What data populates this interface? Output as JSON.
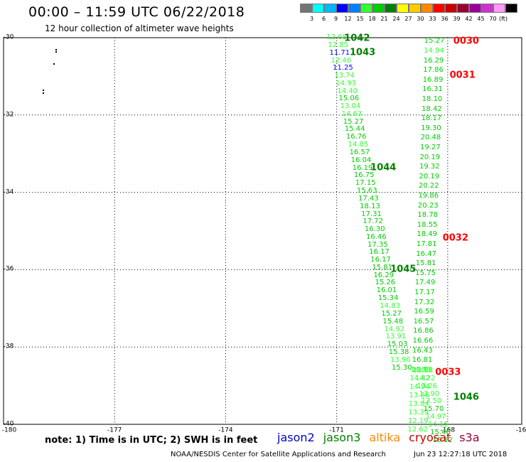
{
  "header": {
    "title": "00:00  –  11:59  UTC  06/22/2018",
    "subtitle": "12 hour collection of altimeter wave heights"
  },
  "legend": {
    "colors": [
      "#757575",
      "#00ffff",
      "#00b7ff",
      "#0000ff",
      "#007fff",
      "#33ff33",
      "#00cc00",
      "#008000",
      "#ffff00",
      "#ffcc00",
      "#ff8800",
      "#ff0000",
      "#cc0000",
      "#990033",
      "#990099",
      "#cc33cc",
      "#ff99ff",
      "#000000"
    ],
    "ticks": [
      "3",
      "6",
      "9",
      "12",
      "15",
      "18",
      "21",
      "24",
      "27",
      "30",
      "33",
      "36",
      "39",
      "42",
      "45",
      "70"
    ],
    "unit": "(ft)"
  },
  "axes": {
    "lon_labels": [
      "-180",
      "-177",
      "-174",
      "-171",
      "-168",
      "-16"
    ],
    "lat_labels": [
      "-30",
      "-32",
      "-34",
      "-36",
      "-38",
      "-40"
    ]
  },
  "notes": {
    "text": "note:  1) Time is in UTC;  2) SWH is in feet"
  },
  "satellites": [
    {
      "name": "jason2",
      "color": "#0000cc"
    },
    {
      "name": "jason3",
      "color": "#008000"
    },
    {
      "name": "altika",
      "color": "#ff8800"
    },
    {
      "name": "cryosat",
      "color": "#cc0000"
    },
    {
      "name": "s3a",
      "color": "#990033"
    }
  ],
  "footer": {
    "credit": "NOAA/NESDIS Center for Satellite Applications and Research",
    "timestamp": "Jun 23 12:27:18 UTC 2018"
  },
  "chart_data": {
    "type": "scatter",
    "xlim": [
      -180,
      -166
    ],
    "ylim": [
      -40,
      -30
    ],
    "grid": true,
    "track_a": {
      "heights": [
        {
          "v": "12.68",
          "lon": -171.0,
          "lat": -30.0,
          "c": "#33ff33"
        },
        {
          "v": "12.85",
          "lon": -170.96,
          "lat": -30.2,
          "c": "#33ff33"
        },
        {
          "v": "11.71",
          "lon": -170.92,
          "lat": -30.4,
          "c": "#0000ff"
        },
        {
          "v": "12.46",
          "lon": -170.88,
          "lat": -30.6,
          "c": "#33ff33"
        },
        {
          "v": "11.25",
          "lon": -170.83,
          "lat": -30.79,
          "c": "#0000ff"
        },
        {
          "v": "13.74",
          "lon": -170.79,
          "lat": -30.99,
          "c": "#33ff33"
        },
        {
          "v": "14.93",
          "lon": -170.75,
          "lat": -31.19,
          "c": "#33ff33"
        },
        {
          "v": "14.40",
          "lon": -170.71,
          "lat": -31.39,
          "c": "#33ff33"
        },
        {
          "v": "15.06",
          "lon": -170.67,
          "lat": -31.59,
          "c": "#00cc00"
        },
        {
          "v": "13.04",
          "lon": -170.63,
          "lat": -31.79,
          "c": "#33ff33"
        },
        {
          "v": "14.63",
          "lon": -170.59,
          "lat": -31.99,
          "c": "#33ff33"
        },
        {
          "v": "15.27",
          "lon": -170.55,
          "lat": -32.18,
          "c": "#00cc00"
        },
        {
          "v": "15.44",
          "lon": -170.51,
          "lat": -32.38,
          "c": "#00cc00"
        },
        {
          "v": "16.76",
          "lon": -170.47,
          "lat": -32.58,
          "c": "#00cc00"
        },
        {
          "v": "14.85",
          "lon": -170.42,
          "lat": -32.78,
          "c": "#33ff33"
        },
        {
          "v": "16.57",
          "lon": -170.38,
          "lat": -32.98,
          "c": "#00cc00"
        },
        {
          "v": "16.04",
          "lon": -170.34,
          "lat": -33.18,
          "c": "#00cc00"
        },
        {
          "v": "16.19",
          "lon": -170.3,
          "lat": -33.38,
          "c": "#00cc00"
        },
        {
          "v": "16.75",
          "lon": -170.26,
          "lat": -33.57,
          "c": "#00cc00"
        },
        {
          "v": "17.15",
          "lon": -170.22,
          "lat": -33.77,
          "c": "#00cc00"
        },
        {
          "v": "15.63",
          "lon": -170.18,
          "lat": -33.97,
          "c": "#00cc00"
        },
        {
          "v": "17.43",
          "lon": -170.14,
          "lat": -34.17,
          "c": "#00cc00"
        },
        {
          "v": "18.13",
          "lon": -170.1,
          "lat": -34.37,
          "c": "#00cc00"
        },
        {
          "v": "17.31",
          "lon": -170.06,
          "lat": -34.57,
          "c": "#00cc00"
        },
        {
          "v": "17.72",
          "lon": -170.02,
          "lat": -34.77,
          "c": "#00cc00"
        },
        {
          "v": "16.30",
          "lon": -169.97,
          "lat": -34.96,
          "c": "#00cc00"
        },
        {
          "v": "16.46",
          "lon": -169.93,
          "lat": -35.16,
          "c": "#00cc00"
        },
        {
          "v": "17.35",
          "lon": -169.89,
          "lat": -35.36,
          "c": "#00cc00"
        },
        {
          "v": "16.17",
          "lon": -169.85,
          "lat": -35.56,
          "c": "#00cc00"
        },
        {
          "v": "16.17",
          "lon": -169.81,
          "lat": -35.76,
          "c": "#00cc00"
        },
        {
          "v": "15.81",
          "lon": -169.77,
          "lat": -35.96,
          "c": "#00cc00"
        },
        {
          "v": "16.29",
          "lon": -169.73,
          "lat": -36.16,
          "c": "#00cc00"
        },
        {
          "v": "15.26",
          "lon": -169.69,
          "lat": -36.35,
          "c": "#00cc00"
        },
        {
          "v": "16.01",
          "lon": -169.65,
          "lat": -36.55,
          "c": "#00cc00"
        },
        {
          "v": "15.34",
          "lon": -169.61,
          "lat": -36.75,
          "c": "#00cc00"
        },
        {
          "v": "14.83",
          "lon": -169.56,
          "lat": -36.95,
          "c": "#33ff33"
        },
        {
          "v": "15.27",
          "lon": -169.52,
          "lat": -37.15,
          "c": "#00cc00"
        },
        {
          "v": "15.48",
          "lon": -169.48,
          "lat": -37.35,
          "c": "#00cc00"
        },
        {
          "v": "14.92",
          "lon": -169.44,
          "lat": -37.55,
          "c": "#33ff33"
        },
        {
          "v": "13.91",
          "lon": -169.4,
          "lat": -37.74,
          "c": "#33ff33"
        },
        {
          "v": "15.03",
          "lon": -169.36,
          "lat": -37.94,
          "c": "#00cc00"
        },
        {
          "v": "15.38",
          "lon": -169.32,
          "lat": -38.14,
          "c": "#00cc00"
        },
        {
          "v": "13.96",
          "lon": -169.28,
          "lat": -38.34,
          "c": "#33ff33"
        },
        {
          "v": "15.30",
          "lon": -169.24,
          "lat": -38.54,
          "c": "#00cc00"
        }
      ],
      "times": [
        {
          "v": "1042",
          "lon": -170.45,
          "lat": -30.01,
          "c": "#008000"
        },
        {
          "v": "1043",
          "lon": -170.3,
          "lat": -30.39,
          "c": "#008000"
        },
        {
          "v": "1044",
          "lon": -169.74,
          "lat": -33.36,
          "c": "#008000"
        },
        {
          "v": "1045",
          "lon": -169.2,
          "lat": -36.0,
          "c": "#008000"
        }
      ]
    },
    "track_b": {
      "heights": [
        {
          "v": "15.27",
          "lon": -168.36,
          "lat": -30.1,
          "c": "#00cc00"
        },
        {
          "v": "14.94",
          "lon": -168.37,
          "lat": -30.35,
          "c": "#33ff33"
        },
        {
          "v": "16.29",
          "lon": -168.38,
          "lat": -30.6,
          "c": "#00cc00"
        },
        {
          "v": "17.86",
          "lon": -168.39,
          "lat": -30.85,
          "c": "#00cc00"
        },
        {
          "v": "16.89",
          "lon": -168.4,
          "lat": -31.1,
          "c": "#00cc00"
        },
        {
          "v": "16.31",
          "lon": -168.41,
          "lat": -31.35,
          "c": "#00cc00"
        },
        {
          "v": "18.10",
          "lon": -168.42,
          "lat": -31.6,
          "c": "#00cc00"
        },
        {
          "v": "18.42",
          "lon": -168.43,
          "lat": -31.85,
          "c": "#00cc00"
        },
        {
          "v": "18.17",
          "lon": -168.44,
          "lat": -32.1,
          "c": "#00cc00"
        },
        {
          "v": "19.30",
          "lon": -168.45,
          "lat": -32.35,
          "c": "#00cc00"
        },
        {
          "v": "20.48",
          "lon": -168.46,
          "lat": -32.6,
          "c": "#00cc00"
        },
        {
          "v": "19.27",
          "lon": -168.47,
          "lat": -32.85,
          "c": "#00cc00"
        },
        {
          "v": "20.19",
          "lon": -168.48,
          "lat": -33.1,
          "c": "#00cc00"
        },
        {
          "v": "19.32",
          "lon": -168.49,
          "lat": -33.35,
          "c": "#00cc00"
        },
        {
          "v": "20.19",
          "lon": -168.5,
          "lat": -33.6,
          "c": "#00cc00"
        },
        {
          "v": "20.22",
          "lon": -168.51,
          "lat": -33.85,
          "c": "#00cc00"
        },
        {
          "v": "19.86",
          "lon": -168.52,
          "lat": -34.1,
          "c": "#00cc00"
        },
        {
          "v": "20.23",
          "lon": -168.53,
          "lat": -34.35,
          "c": "#00cc00"
        },
        {
          "v": "18.78",
          "lon": -168.54,
          "lat": -34.6,
          "c": "#00cc00"
        },
        {
          "v": "18.55",
          "lon": -168.55,
          "lat": -34.85,
          "c": "#00cc00"
        },
        {
          "v": "18.49",
          "lon": -168.56,
          "lat": -35.1,
          "c": "#00cc00"
        },
        {
          "v": "17.81",
          "lon": -168.57,
          "lat": -35.35,
          "c": "#00cc00"
        },
        {
          "v": "16.47",
          "lon": -168.58,
          "lat": -35.6,
          "c": "#00cc00"
        },
        {
          "v": "15.81",
          "lon": -168.59,
          "lat": -35.85,
          "c": "#00cc00"
        },
        {
          "v": "15.75",
          "lon": -168.6,
          "lat": -36.1,
          "c": "#00cc00"
        },
        {
          "v": "17.49",
          "lon": -168.61,
          "lat": -36.35,
          "c": "#00cc00"
        },
        {
          "v": "17.17",
          "lon": -168.62,
          "lat": -36.6,
          "c": "#00cc00"
        },
        {
          "v": "17.32",
          "lon": -168.63,
          "lat": -36.85,
          "c": "#00cc00"
        },
        {
          "v": "16.59",
          "lon": -168.64,
          "lat": -37.1,
          "c": "#00cc00"
        },
        {
          "v": "16.57",
          "lon": -168.65,
          "lat": -37.35,
          "c": "#00cc00"
        },
        {
          "v": "16.86",
          "lon": -168.66,
          "lat": -37.6,
          "c": "#00cc00"
        },
        {
          "v": "16.66",
          "lon": -168.67,
          "lat": -37.85,
          "c": "#00cc00"
        },
        {
          "v": "16.43",
          "lon": -168.68,
          "lat": -38.1,
          "c": "#00cc00"
        },
        {
          "v": "16.81",
          "lon": -168.69,
          "lat": -38.35,
          "c": "#00cc00"
        },
        {
          "v": "13.53",
          "lon": -168.7,
          "lat": -38.6,
          "c": "#33ff33"
        }
      ],
      "times": [
        {
          "v": "0030",
          "lon": -167.5,
          "lat": -30.1,
          "c": "#ff0000"
        },
        {
          "v": "0031",
          "lon": -167.6,
          "lat": -30.98,
          "c": "#ff0000"
        },
        {
          "v": "0032",
          "lon": -167.79,
          "lat": -35.18,
          "c": "#ff0000"
        }
      ]
    },
    "track_c": {
      "heights": [
        {
          "v": "14.95",
          "lon": -168.74,
          "lat": -38.6,
          "c": "#33ff33"
        },
        {
          "v": "14.42",
          "lon": -168.75,
          "lat": -38.82,
          "c": "#33ff33"
        },
        {
          "v": "14.94",
          "lon": -168.76,
          "lat": -39.04,
          "c": "#33ff33"
        },
        {
          "v": "13.86",
          "lon": -168.77,
          "lat": -39.26,
          "c": "#33ff33"
        },
        {
          "v": "13.84",
          "lon": -168.78,
          "lat": -39.48,
          "c": "#33ff33"
        },
        {
          "v": "13.39",
          "lon": -168.79,
          "lat": -39.7,
          "c": "#33ff33"
        },
        {
          "v": "12.19",
          "lon": -168.8,
          "lat": -39.92,
          "c": "#33ff33"
        },
        {
          "v": "12.62",
          "lon": -168.81,
          "lat": -40.14,
          "c": "#33ff33"
        }
      ],
      "times": [
        {
          "v": "0033",
          "lon": -167.99,
          "lat": -38.65,
          "c": "#ff0000"
        }
      ]
    },
    "track_d": {
      "heights": [
        {
          "v": "13.88",
          "lon": -168.67,
          "lat": -38.62,
          "c": "#33ff33"
        },
        {
          "v": "14.22",
          "lon": -168.61,
          "lat": -38.82,
          "c": "#33ff33"
        },
        {
          "v": "13.26",
          "lon": -168.56,
          "lat": -39.02,
          "c": "#33ff33"
        },
        {
          "v": "13.90",
          "lon": -168.5,
          "lat": -39.22,
          "c": "#33ff33"
        },
        {
          "v": "13.50",
          "lon": -168.44,
          "lat": -39.42,
          "c": "#33ff33"
        },
        {
          "v": "15.70",
          "lon": -168.38,
          "lat": -39.62,
          "c": "#00cc00"
        },
        {
          "v": "14.97",
          "lon": -168.32,
          "lat": -39.82,
          "c": "#33ff33"
        },
        {
          "v": "14.15",
          "lon": -168.26,
          "lat": -40.02,
          "c": "#33ff33"
        },
        {
          "v": "15.46",
          "lon": -168.2,
          "lat": -40.22,
          "c": "#00cc00"
        },
        {
          "v": "16.12",
          "lon": -168.14,
          "lat": -40.42,
          "c": "#00cc00"
        }
      ],
      "times": [
        {
          "v": "1046",
          "lon": -167.5,
          "lat": -39.3,
          "c": "#008000"
        }
      ]
    }
  }
}
